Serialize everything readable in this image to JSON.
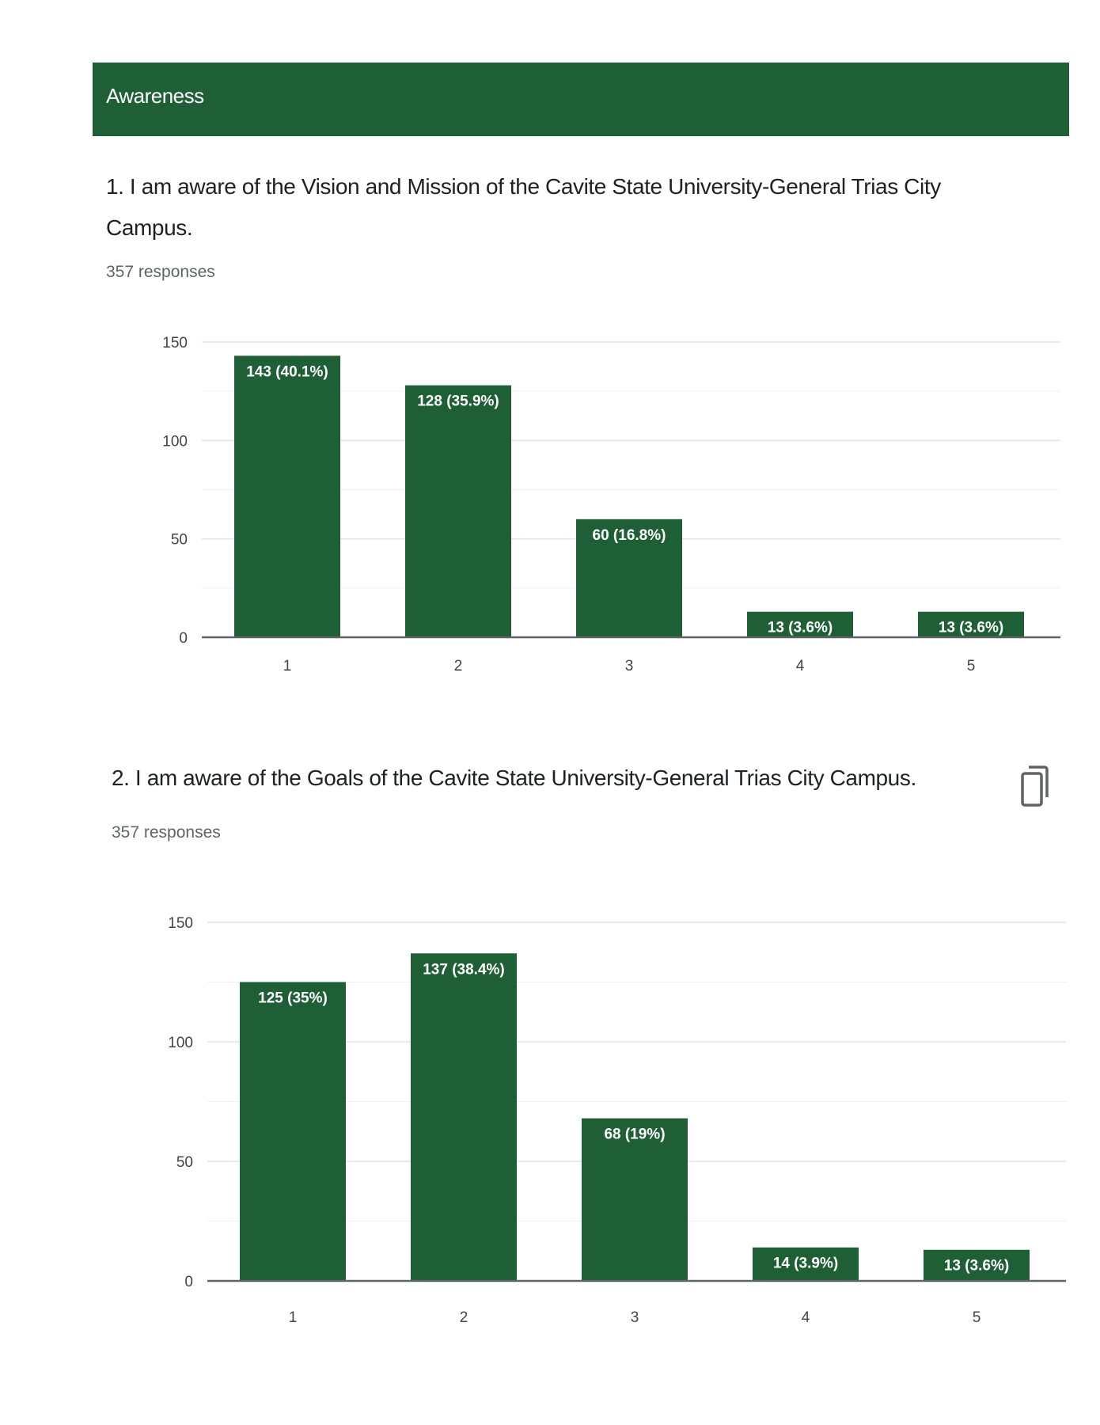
{
  "section": {
    "title": "Awareness",
    "color": "#1f5f36"
  },
  "questions": [
    {
      "title": "1. I am aware of the Vision and Mission of the Cavite State University-General Trias City Campus.",
      "responses": "357 responses"
    },
    {
      "title": "2. I am aware of the Goals of the Cavite State University-General Trias City Campus.",
      "responses": "357 responses",
      "copy_icon": "copy-icon"
    }
  ],
  "chart_data": [
    {
      "type": "bar",
      "categories": [
        "1",
        "2",
        "3",
        "4",
        "5"
      ],
      "values": [
        143,
        128,
        60,
        13,
        13
      ],
      "bar_labels": [
        "143 (40.1%)",
        "128 (35.9%)",
        "60 (16.8%)",
        "13 (3.6%)",
        "13 (3.6%)"
      ],
      "ylim": [
        0,
        150
      ],
      "yticks": [
        0,
        50,
        100,
        150
      ],
      "grid": true,
      "bar_color": "#1f5f36"
    },
    {
      "type": "bar",
      "categories": [
        "1",
        "2",
        "3",
        "4",
        "5"
      ],
      "values": [
        125,
        137,
        68,
        14,
        13
      ],
      "bar_labels": [
        "125 (35%)",
        "137 (38.4%)",
        "68 (19%)",
        "14 (3.9%)",
        "13 (3.6%)"
      ],
      "ylim": [
        0,
        150
      ],
      "yticks": [
        0,
        50,
        100,
        150
      ],
      "grid": true,
      "bar_color": "#1f5f36"
    }
  ]
}
